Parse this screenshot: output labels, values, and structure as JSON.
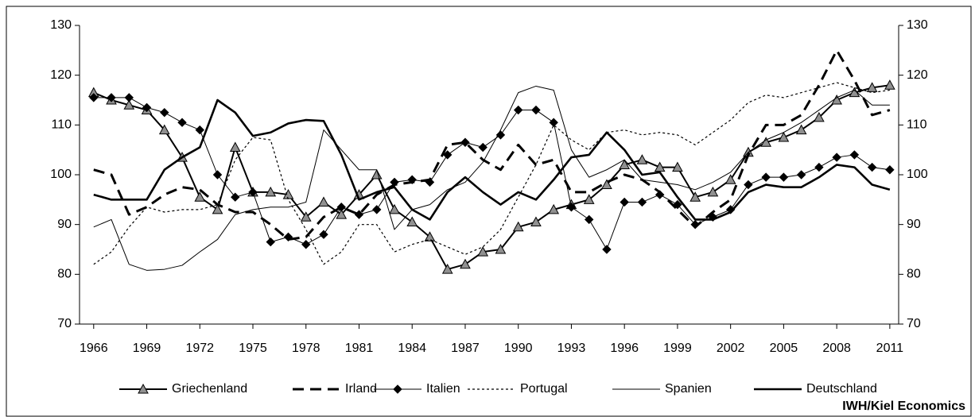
{
  "chart_data": {
    "type": "line",
    "source": "IWH/Kiel Economics",
    "x": [
      1966,
      1967,
      1968,
      1969,
      1970,
      1971,
      1972,
      1973,
      1974,
      1975,
      1976,
      1977,
      1978,
      1979,
      1980,
      1981,
      1982,
      1983,
      1984,
      1985,
      1986,
      1987,
      1988,
      1989,
      1990,
      1991,
      1992,
      1993,
      1994,
      1995,
      1996,
      1997,
      1998,
      1999,
      2000,
      2001,
      2002,
      2003,
      2004,
      2005,
      2006,
      2007,
      2008,
      2009,
      2010,
      2011
    ],
    "xlim": [
      1965.2,
      2011.5
    ],
    "xticks": [
      1966,
      1969,
      1972,
      1975,
      1978,
      1981,
      1984,
      1987,
      1990,
      1993,
      1996,
      1999,
      2002,
      2005,
      2008,
      2011
    ],
    "ylim": [
      70,
      130
    ],
    "yticks": [
      70,
      80,
      90,
      100,
      110,
      120,
      130
    ],
    "y2lim": [
      70,
      130
    ],
    "y2ticks": [
      70,
      80,
      90,
      100,
      110,
      120,
      130
    ],
    "legend": "bottom",
    "series": [
      {
        "name": "Griechenland",
        "color": "#000000",
        "style": "medium",
        "marker": "triangle",
        "marker_color": "#909090",
        "values": [
          116.5,
          115,
          114,
          113,
          109,
          103.5,
          95.5,
          93,
          105.5,
          96.5,
          96.5,
          96,
          91.5,
          94.5,
          92,
          96,
          100,
          93,
          90.5,
          87.5,
          81,
          82,
          84.5,
          85,
          89.5,
          90.5,
          93,
          94,
          95,
          98,
          102,
          103,
          101.5,
          101.5,
          95.5,
          96.5,
          99,
          104.5,
          106.5,
          107.5,
          109,
          111.5,
          115,
          116.5,
          117.5,
          118
        ]
      },
      {
        "name": "Irland",
        "color": "#000000",
        "style": "dashed",
        "values": [
          101,
          100,
          92,
          93.5,
          96,
          97.5,
          97,
          94,
          92.5,
          92.5,
          90,
          87,
          87.5,
          91.5,
          93.5,
          92,
          96,
          98,
          98.5,
          99,
          106,
          106.5,
          103,
          101,
          106,
          102,
          103,
          96.5,
          96.5,
          98.5,
          100,
          99,
          96.5,
          93,
          89.5,
          92.5,
          95,
          104,
          110,
          110,
          112,
          118,
          125,
          119,
          112,
          113
        ]
      },
      {
        "name": "Italien",
        "color": "#000000",
        "style": "thin",
        "marker": "diamond",
        "marker_color": "#000000",
        "values": [
          115.5,
          115.5,
          115.5,
          113.5,
          112.5,
          110.5,
          109,
          100,
          95.5,
          96.5,
          86.5,
          87.5,
          86,
          88,
          93.5,
          92,
          93,
          98.5,
          99,
          98.5,
          104,
          106.5,
          105.5,
          108,
          113,
          113,
          110.5,
          93.5,
          91,
          85,
          94.5,
          94.5,
          96,
          94,
          90,
          91.5,
          93,
          98,
          99.5,
          99.5,
          100,
          101.5,
          103.5,
          104,
          101.5,
          101
        ]
      },
      {
        "name": "Portugal",
        "color": "#000000",
        "style": "dotted",
        "values": [
          82,
          84.5,
          89.5,
          93.5,
          92.5,
          93,
          93,
          94,
          103,
          107.5,
          107,
          95,
          89,
          82,
          84.5,
          90,
          90,
          84.5,
          86,
          87,
          85.5,
          84,
          85.5,
          89,
          95.5,
          102,
          110,
          107,
          105,
          108.5,
          109,
          108,
          108.5,
          108,
          106,
          108.5,
          111,
          114.5,
          116,
          115.5,
          116.5,
          117.5,
          118.5,
          117.5,
          116.5,
          117
        ]
      },
      {
        "name": "Spanien",
        "color": "#000000",
        "style": "thin",
        "values": [
          89.5,
          91,
          82,
          80.8,
          81,
          81.8,
          84.5,
          87,
          92,
          93,
          93.5,
          93.5,
          94.5,
          109,
          105,
          101,
          101,
          89,
          93,
          94,
          97,
          98.5,
          102.5,
          109,
          116.5,
          117.8,
          117,
          105,
          99.5,
          101,
          103,
          99,
          98.5,
          98,
          97,
          98.5,
          100.5,
          104.5,
          107,
          108.5,
          110.5,
          113,
          115.5,
          117,
          114,
          114
        ]
      },
      {
        "name": "Deutschland",
        "color": "#000000",
        "style": "thick",
        "values": [
          96,
          95,
          95,
          95,
          101,
          103.5,
          105.5,
          115,
          112.5,
          107.8,
          108.5,
          110.3,
          111,
          110.8,
          104,
          95,
          96.5,
          97.5,
          93,
          91,
          96.5,
          99.5,
          96.5,
          94,
          96.5,
          95,
          99,
          103.5,
          104,
          108.5,
          105,
          100,
          100.5,
          95.5,
          91,
          91,
          92.5,
          96.5,
          98,
          97.5,
          97.5,
          99.5,
          102,
          101.5,
          98,
          97
        ]
      }
    ]
  }
}
